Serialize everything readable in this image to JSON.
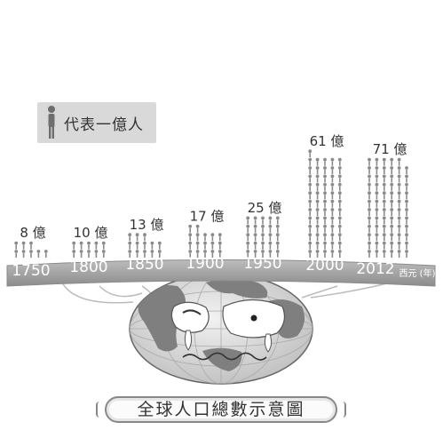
{
  "caption": "全球人口總數示意圖",
  "legend": {
    "text": "代表一億人",
    "icon": "person-icon"
  },
  "unit_label": "西元 (年)",
  "colors": {
    "people": "#8a8a8a",
    "band": "#9a9a9a",
    "ocean": "#e0e0e0",
    "land": "#7f7f7f"
  },
  "chart_data": {
    "type": "bar",
    "title": "全球人口總數示意圖",
    "xlabel": "西元 (年)",
    "ylabel": "",
    "categories": [
      "1750",
      "1800",
      "1850",
      "1900",
      "1950",
      "2000",
      "2012"
    ],
    "values": [
      8,
      10,
      13,
      17,
      25,
      61,
      71
    ],
    "value_labels": [
      "8 億",
      "10 億",
      "13 億",
      "17 億",
      "25 億",
      "61 億",
      "71 億"
    ],
    "unit_per_icon": 1
  }
}
